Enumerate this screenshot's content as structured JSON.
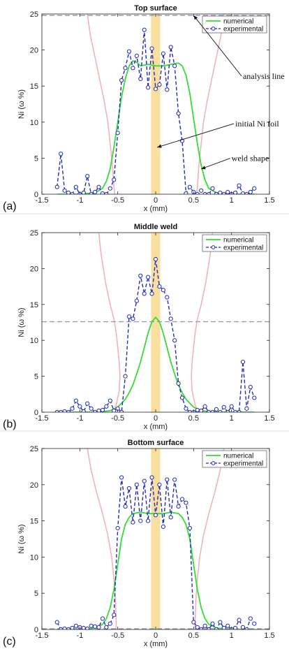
{
  "chart_data": [
    {
      "type": "line",
      "panel_letter": "(a)",
      "title": "Top surface",
      "xlabel": "x (mm)",
      "ylabel": "Ni (ω %)",
      "xlim": [
        -1.5,
        1.5
      ],
      "ylim": [
        0,
        25
      ],
      "xticks": [
        -1.5,
        -1,
        -0.5,
        0,
        0.5,
        1,
        1.5
      ],
      "xtick_labels": [
        "-1.5",
        "-1",
        "-0.5",
        "0",
        "0.5",
        "1",
        "1.5"
      ],
      "yticks": [
        0,
        5,
        10,
        15,
        20,
        25
      ],
      "ytick_labels": [
        "0",
        "5",
        "10",
        "15",
        "20",
        "25"
      ],
      "legend_position": "top-right",
      "analysis_line_y": 24.8,
      "ni_foil_band": [
        -0.06,
        0.06
      ],
      "weld_shape": {
        "left": [
          [
            -0.9,
            25
          ],
          [
            -0.86,
            22
          ],
          [
            -0.8,
            19
          ],
          [
            -0.74,
            16
          ],
          [
            -0.68,
            13
          ],
          [
            -0.63,
            10
          ],
          [
            -0.6,
            7
          ],
          [
            -0.57,
            4
          ],
          [
            -0.55,
            1
          ],
          [
            -0.54,
            0
          ]
        ],
        "right": [
          [
            0.9,
            25
          ],
          [
            0.86,
            22
          ],
          [
            0.8,
            19
          ],
          [
            0.74,
            16
          ],
          [
            0.68,
            13
          ],
          [
            0.63,
            10
          ],
          [
            0.6,
            7
          ],
          [
            0.57,
            4
          ],
          [
            0.55,
            1
          ],
          [
            0.54,
            0
          ]
        ]
      },
      "series": [
        {
          "name": "numerical",
          "style": "solid",
          "color": "#33dd33",
          "x": [
            -1.3,
            -1.0,
            -0.8,
            -0.7,
            -0.65,
            -0.6,
            -0.55,
            -0.5,
            -0.45,
            -0.4,
            -0.35,
            -0.3,
            -0.25,
            -0.2,
            -0.1,
            0.0,
            0.1,
            0.2,
            0.3,
            0.35,
            0.4,
            0.45,
            0.5,
            0.55,
            0.6,
            0.65,
            0.7,
            0.8,
            1.0,
            1.3
          ],
          "y": [
            0.0,
            0.0,
            0.2,
            0.8,
            1.8,
            3.5,
            6.5,
            10.0,
            13.5,
            16.0,
            17.8,
            18.5,
            18.3,
            17.8,
            18.0,
            17.8,
            17.8,
            18.0,
            18.2,
            17.8,
            16.5,
            14.0,
            10.5,
            7.0,
            4.0,
            2.0,
            0.8,
            0.2,
            0.0,
            0.0
          ]
        },
        {
          "name": "experimental",
          "style": "dashed-markers",
          "color": "#1f2bbf",
          "x": [
            -1.3,
            -1.25,
            -1.2,
            -1.15,
            -1.1,
            -1.05,
            -1.0,
            -0.95,
            -0.9,
            -0.85,
            -0.8,
            -0.75,
            -0.7,
            -0.65,
            -0.6,
            -0.55,
            -0.5,
            -0.45,
            -0.4,
            -0.35,
            -0.3,
            -0.25,
            -0.2,
            -0.15,
            -0.1,
            -0.05,
            0.0,
            0.05,
            0.1,
            0.15,
            0.2,
            0.25,
            0.3,
            0.35,
            0.4,
            0.45,
            0.5,
            0.55,
            0.6,
            0.65,
            0.7,
            0.75,
            0.8,
            0.85,
            0.9,
            0.95,
            1.0,
            1.05,
            1.1,
            1.15,
            1.2,
            1.25,
            1.3
          ],
          "y": [
            1.0,
            5.6,
            0.5,
            0.2,
            0.0,
            1.0,
            0.0,
            0.2,
            2.5,
            0.0,
            0.3,
            1.0,
            0.1,
            0.0,
            0.8,
            2.0,
            8.5,
            15.8,
            17.5,
            19.8,
            17.5,
            19.2,
            16.0,
            22.8,
            14.8,
            20.2,
            14.6,
            15.2,
            19.5,
            14.5,
            20.4,
            17.8,
            11.2,
            7.4,
            0.1,
            1.0,
            0.3,
            0.0,
            0.5,
            0.0,
            0.0,
            0.8,
            0.0,
            0.2,
            0.0,
            0.3,
            0.0,
            0.2,
            1.2,
            0.1,
            0.0,
            0.3,
            0.8
          ]
        }
      ],
      "annotations": [
        {
          "text": "analysis line",
          "x": 1.15,
          "y": 16.0,
          "arrow_to": [
            0.5,
            24.8
          ]
        },
        {
          "text": "initial Ni foil",
          "x": 1.05,
          "y": 9.4,
          "arrow_to": [
            0.02,
            6.5
          ]
        },
        {
          "text": "weld shape",
          "x": 1.0,
          "y": 4.6,
          "arrow_to": [
            0.6,
            3.5
          ]
        }
      ]
    },
    {
      "type": "line",
      "panel_letter": "(b)",
      "title": "Middle weld",
      "xlabel": "x (mm)",
      "ylabel": "Ni (ω %)",
      "xlim": [
        -1.5,
        1.5
      ],
      "ylim": [
        0,
        25
      ],
      "xticks": [
        -1.5,
        -1,
        -0.5,
        0,
        0.5,
        1,
        1.5
      ],
      "xtick_labels": [
        "-1.5",
        "-1",
        "-0.5",
        "0",
        "0.5",
        "1",
        "1.5"
      ],
      "yticks": [
        0,
        5,
        10,
        15,
        20,
        25
      ],
      "ytick_labels": [
        "0",
        "5",
        "10",
        "15",
        "20",
        "25"
      ],
      "legend_position": "top-right",
      "analysis_line_y": 12.6,
      "ni_foil_band": [
        -0.06,
        0.06
      ],
      "weld_shape": {
        "left": [
          [
            -0.75,
            25
          ],
          [
            -0.72,
            22
          ],
          [
            -0.66,
            18
          ],
          [
            -0.6,
            15
          ],
          [
            -0.55,
            13
          ],
          [
            -0.52,
            11
          ],
          [
            -0.5,
            9
          ],
          [
            -0.48,
            7
          ],
          [
            -0.47,
            5
          ],
          [
            -0.48,
            3
          ],
          [
            -0.52,
            1
          ],
          [
            -0.56,
            0
          ]
        ],
        "right": [
          [
            0.75,
            25
          ],
          [
            0.72,
            22
          ],
          [
            0.66,
            18
          ],
          [
            0.6,
            15
          ],
          [
            0.55,
            13
          ],
          [
            0.52,
            11
          ],
          [
            0.5,
            9
          ],
          [
            0.48,
            7
          ],
          [
            0.47,
            5
          ],
          [
            0.48,
            3
          ],
          [
            0.52,
            1
          ],
          [
            0.56,
            0
          ]
        ]
      },
      "series": [
        {
          "name": "numerical",
          "style": "solid",
          "color": "#33dd33",
          "x": [
            -1.3,
            -0.8,
            -0.6,
            -0.5,
            -0.4,
            -0.35,
            -0.3,
            -0.25,
            -0.2,
            -0.15,
            -0.1,
            -0.05,
            0.0,
            0.05,
            0.1,
            0.15,
            0.2,
            0.25,
            0.3,
            0.35,
            0.4,
            0.5,
            0.6,
            0.8,
            1.3
          ],
          "y": [
            0.0,
            0.0,
            0.2,
            0.7,
            1.8,
            2.7,
            3.8,
            5.3,
            7.0,
            9.0,
            11.0,
            12.6,
            13.2,
            12.6,
            11.0,
            9.0,
            7.0,
            5.3,
            3.8,
            2.7,
            1.8,
            0.7,
            0.2,
            0.0,
            0.0
          ]
        },
        {
          "name": "experimental",
          "style": "dashed-markers",
          "color": "#1f2bbf",
          "x": [
            -1.3,
            -1.25,
            -1.2,
            -1.15,
            -1.1,
            -1.05,
            -1.0,
            -0.95,
            -0.9,
            -0.85,
            -0.8,
            -0.75,
            -0.7,
            -0.65,
            -0.6,
            -0.55,
            -0.5,
            -0.45,
            -0.4,
            -0.35,
            -0.3,
            -0.25,
            -0.2,
            -0.15,
            -0.1,
            -0.05,
            0.0,
            0.05,
            0.1,
            0.15,
            0.2,
            0.25,
            0.3,
            0.35,
            0.4,
            0.45,
            0.5,
            0.55,
            0.6,
            0.65,
            0.7,
            0.75,
            0.8,
            0.85,
            0.9,
            0.95,
            1.0,
            1.05,
            1.1,
            1.15,
            1.2,
            1.25,
            1.3
          ],
          "y": [
            0.0,
            0.0,
            0.1,
            0.0,
            0.5,
            1.6,
            0.8,
            0.1,
            1.2,
            0.5,
            0.0,
            0.2,
            0.3,
            0.8,
            1.6,
            0.2,
            0.5,
            0.0,
            5.0,
            13.3,
            13.0,
            15.5,
            19.0,
            16.5,
            18.8,
            16.5,
            21.3,
            17.5,
            17.0,
            16.0,
            13.0,
            10.0,
            4.0,
            2.0,
            0.5,
            0.0,
            0.0,
            0.3,
            0.2,
            0.8,
            0.0,
            0.0,
            0.4,
            0.0,
            0.7,
            0.0,
            0.8,
            0.0,
            0.0,
            7.0,
            0.5,
            3.5,
            2.0
          ]
        }
      ],
      "annotations": []
    },
    {
      "type": "line",
      "panel_letter": "(c)",
      "title": "Bottom surface",
      "xlabel": "x (mm)",
      "ylabel": "Ni (ω %)",
      "xlim": [
        -1.5,
        1.5
      ],
      "ylim": [
        0,
        25
      ],
      "xticks": [
        -1.5,
        -1,
        -0.5,
        0,
        0.5,
        1,
        1.5
      ],
      "xtick_labels": [
        "-1.5",
        "-1",
        "-0.5",
        "0",
        "0.5",
        "1",
        "1.5"
      ],
      "yticks": [
        0,
        5,
        10,
        15,
        20,
        25
      ],
      "ytick_labels": [
        "0",
        "5",
        "10",
        "15",
        "20",
        "25"
      ],
      "legend_position": "top-right",
      "analysis_line_y": 0.1,
      "ni_foil_band": [
        -0.06,
        0.06
      ],
      "weld_shape": {
        "left": [
          [
            -0.9,
            25
          ],
          [
            -0.85,
            22
          ],
          [
            -0.78,
            19
          ],
          [
            -0.7,
            16
          ],
          [
            -0.63,
            13
          ],
          [
            -0.58,
            10
          ],
          [
            -0.55,
            7
          ],
          [
            -0.53,
            4
          ],
          [
            -0.52,
            1
          ],
          [
            -0.52,
            0
          ]
        ],
        "right": [
          [
            0.9,
            25
          ],
          [
            0.85,
            22
          ],
          [
            0.78,
            19
          ],
          [
            0.7,
            16
          ],
          [
            0.63,
            13
          ],
          [
            0.58,
            10
          ],
          [
            0.55,
            7
          ],
          [
            0.53,
            4
          ],
          [
            0.52,
            1
          ],
          [
            0.52,
            0
          ]
        ]
      },
      "series": [
        {
          "name": "numerical",
          "style": "solid",
          "color": "#33dd33",
          "x": [
            -1.3,
            -1.0,
            -0.8,
            -0.7,
            -0.65,
            -0.6,
            -0.55,
            -0.5,
            -0.45,
            -0.4,
            -0.35,
            -0.3,
            -0.2,
            -0.1,
            0.0,
            0.1,
            0.2,
            0.3,
            0.35,
            0.4,
            0.45,
            0.5,
            0.55,
            0.6,
            0.65,
            0.7,
            0.8,
            1.0,
            1.3
          ],
          "y": [
            0.0,
            0.0,
            0.2,
            0.7,
            1.5,
            3.0,
            5.5,
            9.0,
            12.5,
            14.5,
            15.5,
            16.0,
            16.2,
            16.0,
            16.0,
            16.0,
            16.2,
            16.0,
            15.5,
            14.5,
            12.5,
            9.0,
            5.5,
            3.0,
            1.5,
            0.7,
            0.2,
            0.0,
            0.0
          ]
        },
        {
          "name": "experimental",
          "style": "dashed-markers",
          "color": "#1f2bbf",
          "x": [
            -1.3,
            -1.25,
            -1.2,
            -1.15,
            -1.1,
            -1.05,
            -1.0,
            -0.95,
            -0.9,
            -0.85,
            -0.8,
            -0.75,
            -0.7,
            -0.65,
            -0.6,
            -0.55,
            -0.5,
            -0.45,
            -0.4,
            -0.35,
            -0.3,
            -0.25,
            -0.2,
            -0.15,
            -0.1,
            -0.05,
            0.0,
            0.05,
            0.1,
            0.15,
            0.2,
            0.25,
            0.3,
            0.35,
            0.4,
            0.45,
            0.5,
            0.55,
            0.6,
            0.65,
            0.7,
            0.75,
            0.8,
            0.85,
            0.9,
            0.95,
            1.0,
            1.05,
            1.1,
            1.15,
            1.2,
            1.25,
            1.3
          ],
          "y": [
            1.0,
            0.0,
            0.1,
            0.0,
            0.2,
            0.5,
            0.3,
            0.2,
            0.1,
            0.5,
            0.4,
            0.3,
            1.5,
            0.3,
            0.8,
            2.0,
            14.0,
            21.0,
            17.0,
            19.5,
            14.8,
            20.0,
            15.0,
            20.5,
            15.0,
            21.0,
            15.8,
            20.0,
            14.2,
            20.7,
            15.5,
            20.7,
            17.0,
            18.0,
            17.5,
            14.0,
            1.0,
            0.3,
            0.0,
            0.5,
            0.0,
            0.8,
            0.0,
            1.0,
            0.2,
            0.5,
            0.0,
            0.2,
            1.3,
            0.3,
            0.0,
            1.5,
            0.8
          ]
        }
      ],
      "annotations": []
    }
  ]
}
